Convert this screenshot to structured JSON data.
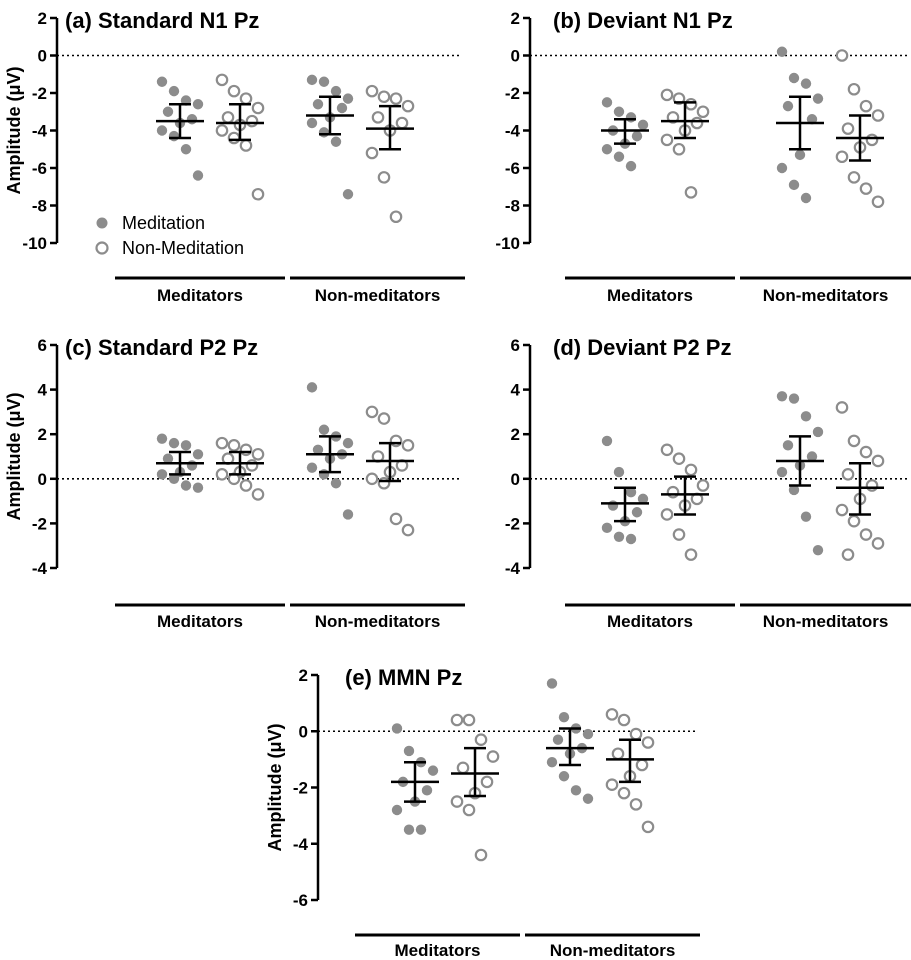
{
  "figure": {
    "legend": [
      {
        "label": "Meditation",
        "marker": "filled-circle",
        "color": "#8c8c8c"
      },
      {
        "label": "Non-Meditation",
        "marker": "open-circle",
        "color": "#8c8c8c"
      }
    ],
    "group_labels": [
      "Meditators",
      "Non-meditators"
    ],
    "colors": {
      "point": "#8c8c8c",
      "axis": "#000000",
      "zero_line": "#000000"
    }
  },
  "chart_data": [
    {
      "type": "scatter",
      "title": "(a) Standard N1 Pz",
      "ylabel": "Amplitude (μV)",
      "ylim": [
        -10,
        2
      ],
      "yticks": [
        2,
        0,
        -2,
        -4,
        -6,
        -8,
        -10
      ],
      "groups": [
        "Meditators",
        "Non-meditators"
      ],
      "zero_line": "dotted",
      "legend": "bottom-left",
      "series": [
        {
          "name": "Meditation",
          "group": "Meditators",
          "values": [
            -1.4,
            -1.9,
            -2.4,
            -2.6,
            -3.0,
            -3.4,
            -3.6,
            -4.0,
            -4.3,
            -5.0,
            -6.4
          ],
          "mean": -3.5,
          "err_low": -4.4,
          "err_high": -2.6
        },
        {
          "name": "Non-Meditation",
          "group": "Meditators",
          "values": [
            -1.3,
            -1.9,
            -2.3,
            -2.8,
            -3.3,
            -3.5,
            -3.7,
            -4.0,
            -4.4,
            -4.8,
            -7.4
          ],
          "mean": -3.6,
          "err_low": -4.5,
          "err_high": -2.6
        },
        {
          "name": "Meditation",
          "group": "Non-meditators",
          "values": [
            -1.3,
            -1.4,
            -1.9,
            -2.3,
            -2.6,
            -2.8,
            -3.3,
            -3.6,
            -4.1,
            -4.6,
            -7.4
          ],
          "mean": -3.2,
          "err_low": -4.2,
          "err_high": -2.2
        },
        {
          "name": "Non-Meditation",
          "group": "Non-meditators",
          "values": [
            -1.9,
            -2.2,
            -2.3,
            -2.7,
            -3.3,
            -3.6,
            -4.0,
            -5.2,
            -6.5,
            -8.6
          ],
          "mean": -3.9,
          "err_low": -5.0,
          "err_high": -2.7
        }
      ]
    },
    {
      "type": "scatter",
      "title": "(b) Deviant N1 Pz",
      "ylabel": "",
      "ylim": [
        -10,
        2
      ],
      "yticks": [
        2,
        0,
        -2,
        -4,
        -6,
        -8,
        -10
      ],
      "groups": [
        "Meditators",
        "Non-meditators"
      ],
      "zero_line": "dotted",
      "series": [
        {
          "name": "Meditation",
          "group": "Meditators",
          "values": [
            -2.5,
            -3.0,
            -3.3,
            -3.7,
            -4.0,
            -4.3,
            -4.7,
            -5.0,
            -5.4,
            -5.9
          ],
          "mean": -4.0,
          "err_low": -4.7,
          "err_high": -3.4
        },
        {
          "name": "Non-Meditation",
          "group": "Meditators",
          "values": [
            -2.1,
            -2.3,
            -2.6,
            -3.0,
            -3.3,
            -3.6,
            -4.0,
            -4.5,
            -5.0,
            -7.3
          ],
          "mean": -3.5,
          "err_low": -4.4,
          "err_high": -2.5
        },
        {
          "name": "Meditation",
          "group": "Non-meditators",
          "values": [
            0.2,
            -1.2,
            -1.5,
            -2.3,
            -2.7,
            -3.4,
            -5.3,
            -6.0,
            -6.9,
            -7.6
          ],
          "mean": -3.6,
          "err_low": -5.0,
          "err_high": -2.2
        },
        {
          "name": "Non-Meditation",
          "group": "Non-meditators",
          "values": [
            0.0,
            -1.8,
            -2.7,
            -3.2,
            -3.9,
            -4.5,
            -4.9,
            -5.4,
            -6.5,
            -7.1,
            -7.8
          ],
          "mean": -4.4,
          "err_low": -5.6,
          "err_high": -3.2
        }
      ]
    },
    {
      "type": "scatter",
      "title": "(c) Standard P2 Pz",
      "ylabel": "Amplitude (μV)",
      "ylim": [
        -4,
        6
      ],
      "yticks": [
        6,
        4,
        2,
        0,
        -2,
        -4
      ],
      "groups": [
        "Meditators",
        "Non-meditators"
      ],
      "zero_line": "dotted",
      "series": [
        {
          "name": "Meditation",
          "group": "Meditators",
          "values": [
            1.8,
            1.6,
            1.5,
            1.1,
            0.9,
            0.6,
            0.3,
            0.2,
            0.0,
            -0.3,
            -0.4
          ],
          "mean": 0.7,
          "err_low": 0.2,
          "err_high": 1.2
        },
        {
          "name": "Non-Meditation",
          "group": "Meditators",
          "values": [
            1.6,
            1.5,
            1.3,
            1.1,
            0.9,
            0.6,
            0.3,
            0.2,
            0.0,
            -0.3,
            -0.7
          ],
          "mean": 0.7,
          "err_low": 0.2,
          "err_high": 1.2
        },
        {
          "name": "Meditation",
          "group": "Non-meditators",
          "values": [
            4.1,
            2.2,
            1.9,
            1.6,
            1.3,
            1.1,
            0.9,
            0.5,
            0.2,
            -0.2,
            -1.6
          ],
          "mean": 1.1,
          "err_low": 0.3,
          "err_high": 1.9
        },
        {
          "name": "Non-Meditation",
          "group": "Non-meditators",
          "values": [
            3.0,
            2.7,
            1.7,
            1.5,
            1.0,
            0.6,
            0.3,
            0.0,
            -0.2,
            -1.8,
            -2.3
          ],
          "mean": 0.8,
          "err_low": -0.1,
          "err_high": 1.6
        }
      ]
    },
    {
      "type": "scatter",
      "title": "(d) Deviant P2 Pz",
      "ylabel": "",
      "ylim": [
        -4,
        6
      ],
      "yticks": [
        6,
        4,
        2,
        0,
        -2,
        -4
      ],
      "groups": [
        "Meditators",
        "Non-meditators"
      ],
      "zero_line": "dotted",
      "series": [
        {
          "name": "Meditation",
          "group": "Meditators",
          "values": [
            1.7,
            0.3,
            -0.6,
            -0.9,
            -1.2,
            -1.5,
            -1.9,
            -2.2,
            -2.6,
            -2.7
          ],
          "mean": -1.1,
          "err_low": -1.9,
          "err_high": -0.4
        },
        {
          "name": "Non-Meditation",
          "group": "Meditators",
          "values": [
            1.3,
            0.9,
            0.4,
            -0.3,
            -0.6,
            -0.9,
            -1.2,
            -1.6,
            -2.5,
            -3.4
          ],
          "mean": -0.7,
          "err_low": -1.6,
          "err_high": 0.1
        },
        {
          "name": "Meditation",
          "group": "Non-meditators",
          "values": [
            3.7,
            3.6,
            2.8,
            2.1,
            1.5,
            1.0,
            0.6,
            0.3,
            -0.5,
            -1.7,
            -3.2
          ],
          "mean": 0.8,
          "err_low": -0.3,
          "err_high": 1.9
        },
        {
          "name": "Non-Meditation",
          "group": "Non-meditators",
          "values": [
            3.2,
            1.7,
            1.2,
            0.8,
            0.2,
            -0.3,
            -0.9,
            -1.4,
            -1.9,
            -2.5,
            -2.9,
            -3.4
          ],
          "mean": -0.4,
          "err_low": -1.6,
          "err_high": 0.7
        }
      ]
    },
    {
      "type": "scatter",
      "title": "(e) MMN Pz",
      "ylabel": "Amplitude (μV)",
      "ylim": [
        -6,
        2
      ],
      "yticks": [
        2,
        0,
        -2,
        -4,
        -6
      ],
      "groups": [
        "Meditators",
        "Non-meditators"
      ],
      "zero_line": "dotted",
      "series": [
        {
          "name": "Meditation",
          "group": "Meditators",
          "values": [
            0.1,
            -0.7,
            -1.1,
            -1.4,
            -1.8,
            -2.1,
            -2.5,
            -2.8,
            -3.5,
            -3.5
          ],
          "mean": -1.8,
          "err_low": -2.5,
          "err_high": -1.1
        },
        {
          "name": "Non-Meditation",
          "group": "Meditators",
          "values": [
            0.4,
            0.4,
            -0.3,
            -0.9,
            -1.3,
            -1.8,
            -2.2,
            -2.5,
            -2.8,
            -4.4
          ],
          "mean": -1.5,
          "err_low": -2.3,
          "err_high": -0.6
        },
        {
          "name": "Meditation",
          "group": "Non-meditators",
          "values": [
            1.7,
            0.5,
            0.1,
            -0.1,
            -0.3,
            -0.6,
            -0.8,
            -1.1,
            -1.6,
            -2.1,
            -2.4
          ],
          "mean": -0.6,
          "err_low": -1.2,
          "err_high": 0.1
        },
        {
          "name": "Non-Meditation",
          "group": "Non-meditators",
          "values": [
            0.6,
            0.4,
            -0.1,
            -0.4,
            -0.8,
            -1.2,
            -1.6,
            -1.9,
            -2.2,
            -2.6,
            -3.4
          ],
          "mean": -1.0,
          "err_low": -1.8,
          "err_high": -0.3
        }
      ]
    }
  ]
}
